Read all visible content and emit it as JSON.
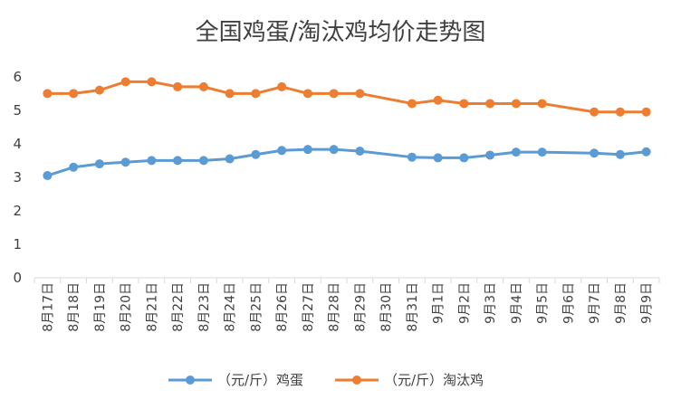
{
  "chart_data": {
    "type": "line",
    "title": "全国鸡蛋/淘汰鸡均价走势图",
    "xlabel": "",
    "ylabel": "",
    "ylim": [
      0,
      6.4
    ],
    "yticks": [
      0,
      1,
      2,
      3,
      4,
      5,
      6
    ],
    "grid": false,
    "legend": "bottom",
    "categories": [
      "8月17日",
      "8月18日",
      "8月19日",
      "8月20日",
      "8月21日",
      "8月22日",
      "8月23日",
      "8月24日",
      "8月25日",
      "8月26日",
      "8月27日",
      "8月28日",
      "8月29日",
      "8月30日",
      "8月31日",
      "9月1日",
      "9月2日",
      "9月3日",
      "9月4日",
      "9月5日",
      "9月6日",
      "9月7日",
      "9月8日",
      "9月9日"
    ],
    "series": [
      {
        "name": "（元/斤）鸡蛋",
        "color": "#5B9BD5",
        "values": [
          3.05,
          3.3,
          3.4,
          3.45,
          3.5,
          3.5,
          3.5,
          3.55,
          3.68,
          3.8,
          3.83,
          3.83,
          3.78,
          null,
          3.6,
          3.58,
          3.58,
          3.66,
          3.75,
          3.75,
          null,
          3.72,
          3.68,
          3.76
        ]
      },
      {
        "name": "（元/斤）淘汰鸡",
        "color": "#ED7D31",
        "values": [
          5.5,
          5.5,
          5.6,
          5.85,
          5.85,
          5.7,
          5.7,
          5.5,
          5.5,
          5.7,
          5.5,
          5.5,
          5.5,
          null,
          5.2,
          5.3,
          5.2,
          5.2,
          5.2,
          5.2,
          null,
          4.95,
          4.95,
          4.95
        ]
      }
    ]
  }
}
